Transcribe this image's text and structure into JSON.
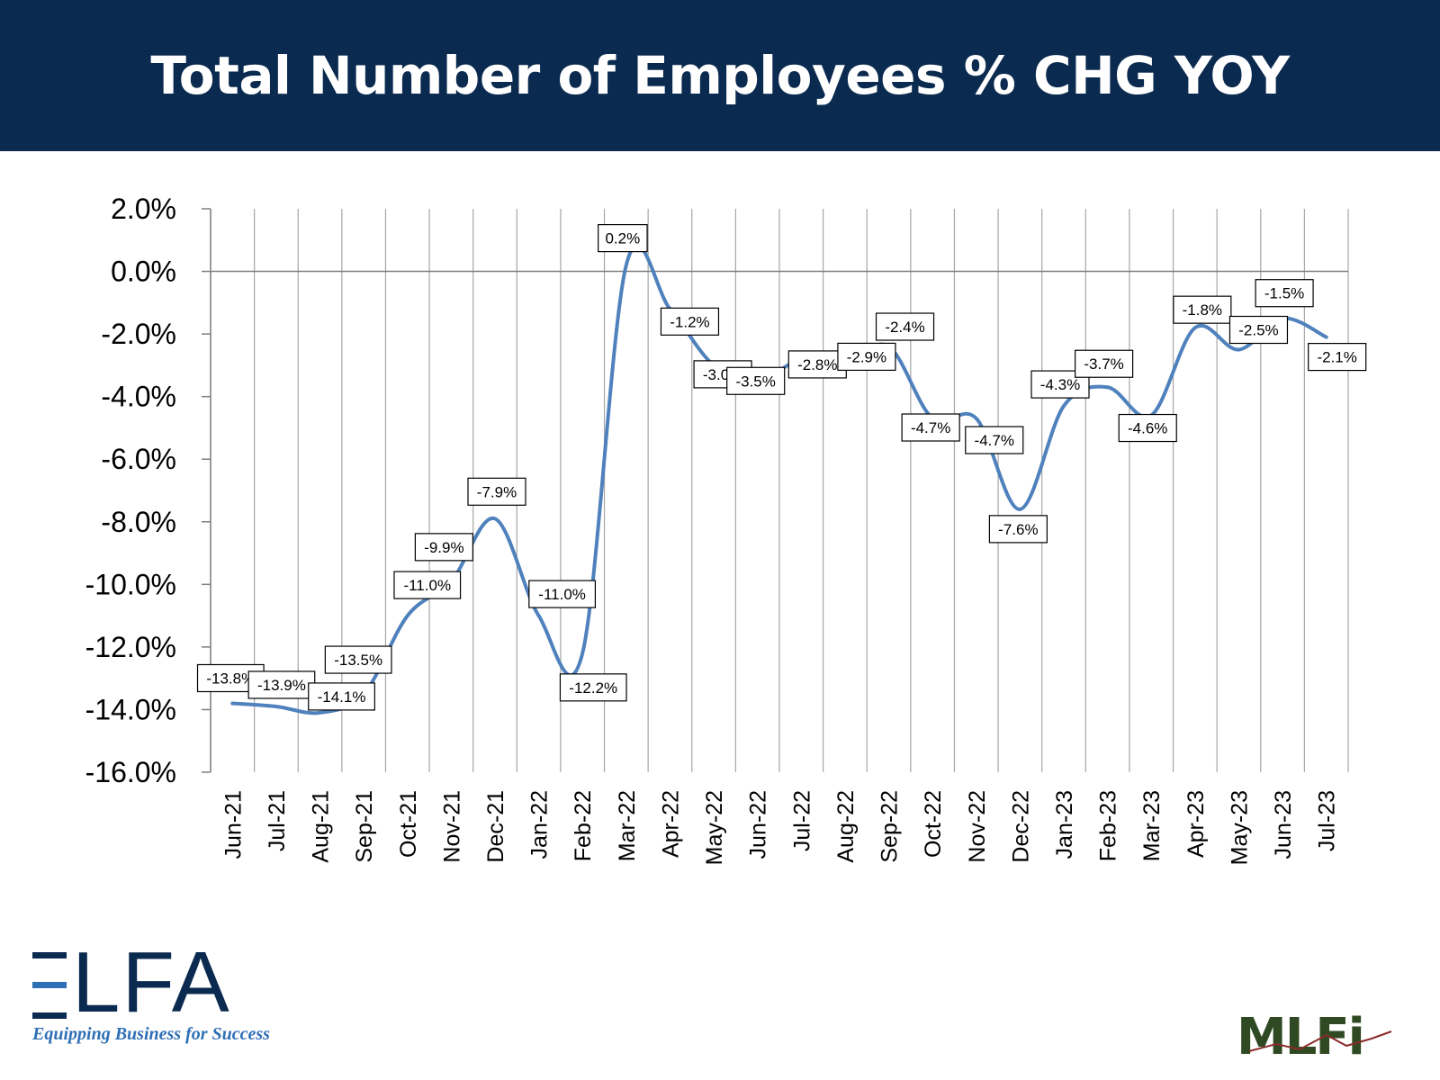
{
  "title": "Total Number of Employees % CHG YOY",
  "chart_data": {
    "type": "line",
    "categories": [
      "Jun-21",
      "Jul-21",
      "Aug-21",
      "Sep-21",
      "Oct-21",
      "Nov-21",
      "Dec-21",
      "Jan-22",
      "Feb-22",
      "Mar-22",
      "Apr-22",
      "May-22",
      "Jun-22",
      "Jul-22",
      "Aug-22",
      "Sep-22",
      "Oct-22",
      "Nov-22",
      "Dec-22",
      "Jan-23",
      "Feb-23",
      "Mar-23",
      "Apr-23",
      "May-23",
      "Jun-23",
      "Jul-23"
    ],
    "series": [
      {
        "values": [
          -13.8,
          -13.9,
          -14.1,
          -13.5,
          -11.0,
          -9.9,
          -7.9,
          -11.0,
          -12.2,
          0.2,
          -1.2,
          -3.0,
          -3.5,
          -2.8,
          -2.9,
          -2.4,
          -4.7,
          -4.7,
          -7.6,
          -4.3,
          -3.7,
          -4.6,
          -1.8,
          -2.5,
          -1.5,
          -2.1
        ],
        "labels": [
          "-13.8%",
          "-13.9%",
          "-14.1%",
          "-13.5%",
          "-11.0%",
          "-9.9%",
          "-7.9%",
          "-11.0%",
          "-12.2%",
          "0.2%",
          "-1.2%",
          "-3.0%",
          "-3.5%",
          "-2.8%",
          "-2.9%",
          "-2.4%",
          "-4.7%",
          "-4.7%",
          "-7.6%",
          "-4.3%",
          "-3.7%",
          "-4.6%",
          "-1.8%",
          "-2.5%",
          "-1.5%",
          "-2.1%"
        ],
        "color": "#4f81bd"
      }
    ],
    "ylim": [
      -16.0,
      2.0
    ],
    "yticks": [
      "2.0%",
      "0.0%",
      "-2.0%",
      "-4.0%",
      "-6.0%",
      "-8.0%",
      "-10.0%",
      "-12.0%",
      "-14.0%",
      "-16.0%"
    ],
    "ytick_values": [
      2,
      0,
      -2,
      -4,
      -6,
      -8,
      -10,
      -12,
      -14,
      -16
    ],
    "grid": "vertical",
    "legend": "none"
  },
  "logos": {
    "elfa": {
      "text": "ELFA",
      "tagline": "Equipping Business for Success"
    },
    "mlfi": {
      "text": "MLFi"
    }
  },
  "colors": {
    "banner": "#0b2a4f",
    "line": "#4f81bd",
    "elfa_dark": "#0b2a4f",
    "elfa_light": "#2f6fb5",
    "mlfi": "#2f4a22"
  }
}
